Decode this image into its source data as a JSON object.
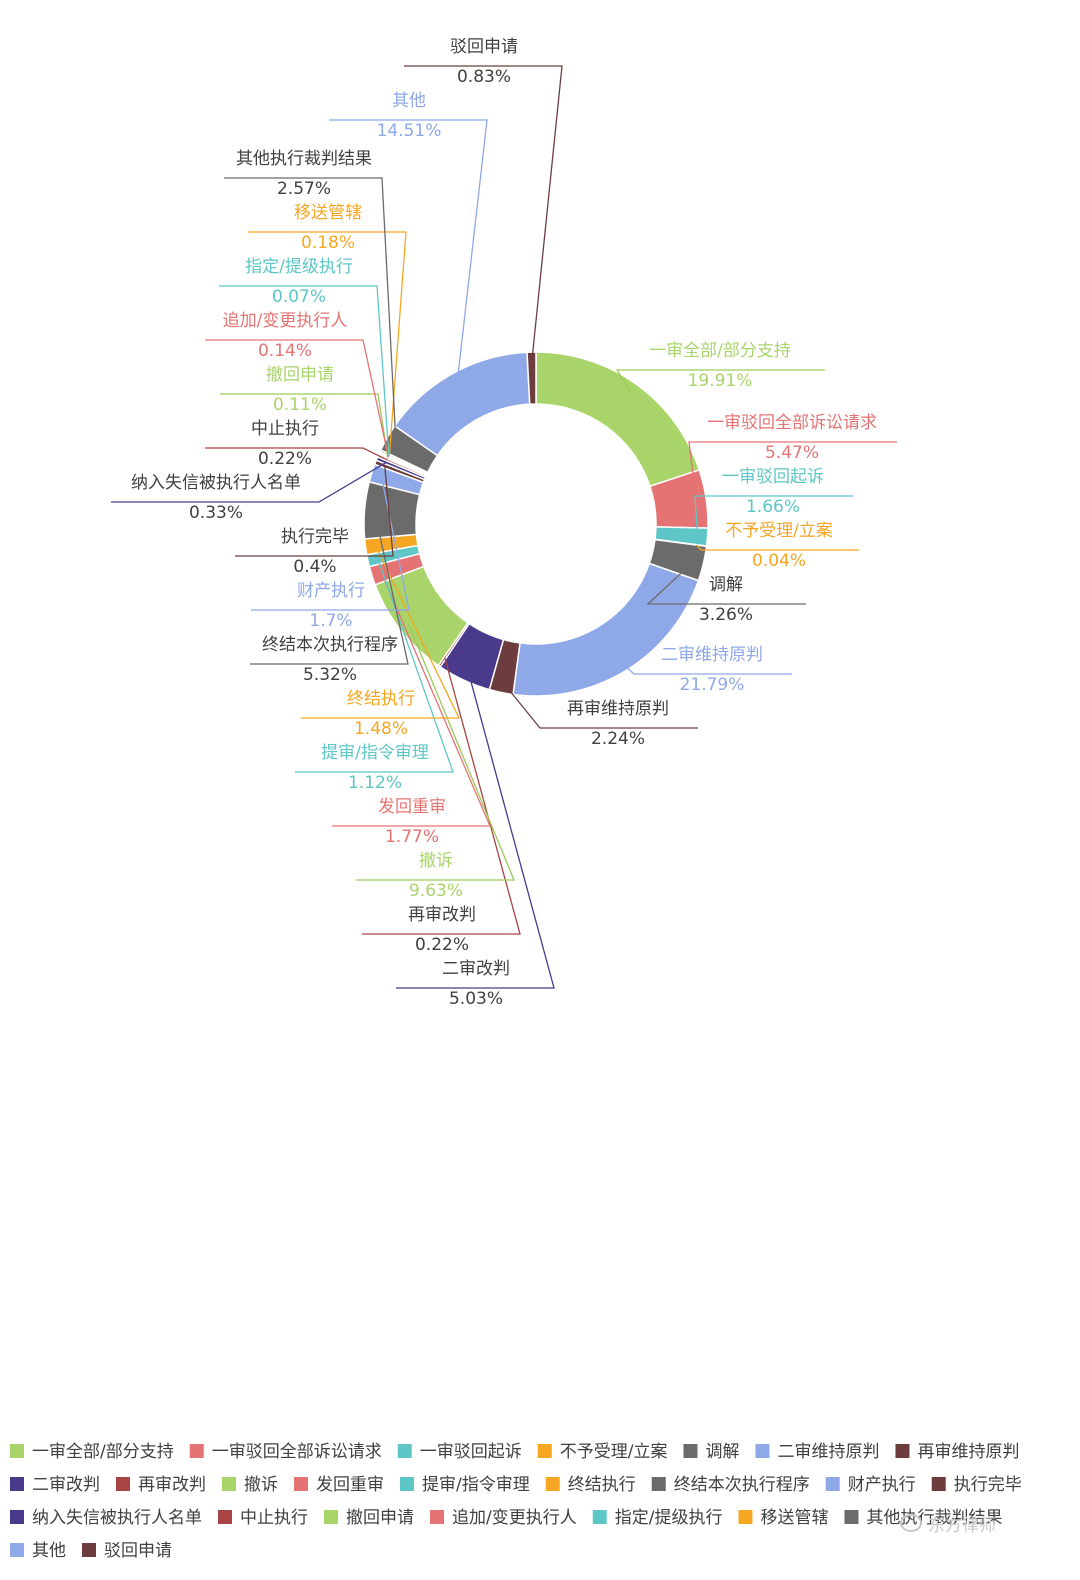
{
  "chart_data": {
    "type": "pie",
    "donut": true,
    "title": "",
    "legend": "bottom",
    "slices": [
      {
        "name": "一审全部/部分支持",
        "value": 19.91,
        "label": "19.91%",
        "color": "#a9d46a"
      },
      {
        "name": "一审驳回全部诉讼请求",
        "value": 5.47,
        "label": "5.47%",
        "color": "#e57373"
      },
      {
        "name": "一审驳回起诉",
        "value": 1.66,
        "label": "1.66%",
        "color": "#5ec6c6"
      },
      {
        "name": "不予受理/立案",
        "value": 0.04,
        "label": "0.04%",
        "color": "#f5a623"
      },
      {
        "name": "调解",
        "value": 3.26,
        "label": "3.26%",
        "color": "#6b6b6b"
      },
      {
        "name": "二审维持原判",
        "value": 21.79,
        "label": "21.79%",
        "color": "#8fa8e8"
      },
      {
        "name": "再审维持原判",
        "value": 2.24,
        "label": "2.24%",
        "color": "#6d3d3d"
      },
      {
        "name": "二审改判",
        "value": 5.03,
        "label": "5.03%",
        "color": "#4a3a8c"
      },
      {
        "name": "再审改判",
        "value": 0.22,
        "label": "0.22%",
        "color": "#a84444"
      },
      {
        "name": "撤诉",
        "value": 9.63,
        "label": "9.63%",
        "color": "#a9d46a"
      },
      {
        "name": "发回重审",
        "value": 1.77,
        "label": "1.77%",
        "color": "#e57373"
      },
      {
        "name": "提审/指令审理",
        "value": 1.12,
        "label": "1.12%",
        "color": "#5ec6c6"
      },
      {
        "name": "终结执行",
        "value": 1.48,
        "label": "1.48%",
        "color": "#f5a623"
      },
      {
        "name": "终结本次执行程序",
        "value": 5.32,
        "label": "5.32%",
        "color": "#6b6b6b"
      },
      {
        "name": "财产执行",
        "value": 1.7,
        "label": "1.7%",
        "color": "#8fa8e8"
      },
      {
        "name": "执行完毕",
        "value": 0.4,
        "label": "0.4%",
        "color": "#6d3d3d"
      },
      {
        "name": "纳入失信被执行人名单",
        "value": 0.33,
        "label": "0.33%",
        "color": "#4a3a8c"
      },
      {
        "name": "中止执行",
        "value": 0.22,
        "label": "0.22%",
        "color": "#a84444"
      },
      {
        "name": "撤回申请",
        "value": 0.11,
        "label": "0.11%",
        "color": "#a9d46a"
      },
      {
        "name": "追加/变更执行人",
        "value": 0.14,
        "label": "0.14%",
        "color": "#e57373"
      },
      {
        "name": "指定/提级执行",
        "value": 0.07,
        "label": "0.07%",
        "color": "#5ec6c6"
      },
      {
        "name": "移送管辖",
        "value": 0.18,
        "label": "0.18%",
        "color": "#f5a623"
      },
      {
        "name": "其他执行裁判结果",
        "value": 2.57,
        "label": "2.57%",
        "color": "#6b6b6b"
      },
      {
        "name": "其他",
        "value": 14.51,
        "label": "14.51%",
        "color": "#8fa8e8"
      },
      {
        "name": "驳回申请",
        "value": 0.83,
        "label": "0.83%",
        "color": "#6d3d3d"
      }
    ]
  },
  "watermark": {
    "text": "东方律师",
    "icon": "wechat-icon"
  }
}
